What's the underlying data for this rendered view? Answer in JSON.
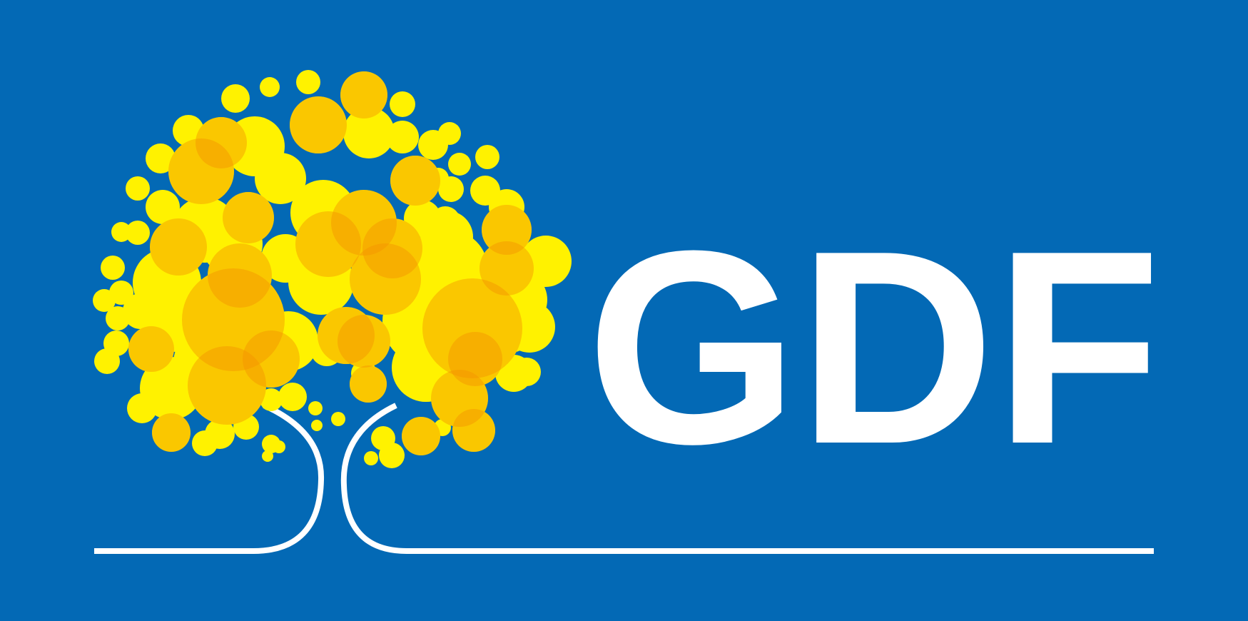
{
  "logo": {
    "wordmark": "GDF",
    "icon": "ipe-tree-icon"
  },
  "colors": {
    "background": "#0369b5",
    "foreground": "#ffffff",
    "blossom_yellow": "#fff200",
    "blossom_orange": "#f39200"
  }
}
